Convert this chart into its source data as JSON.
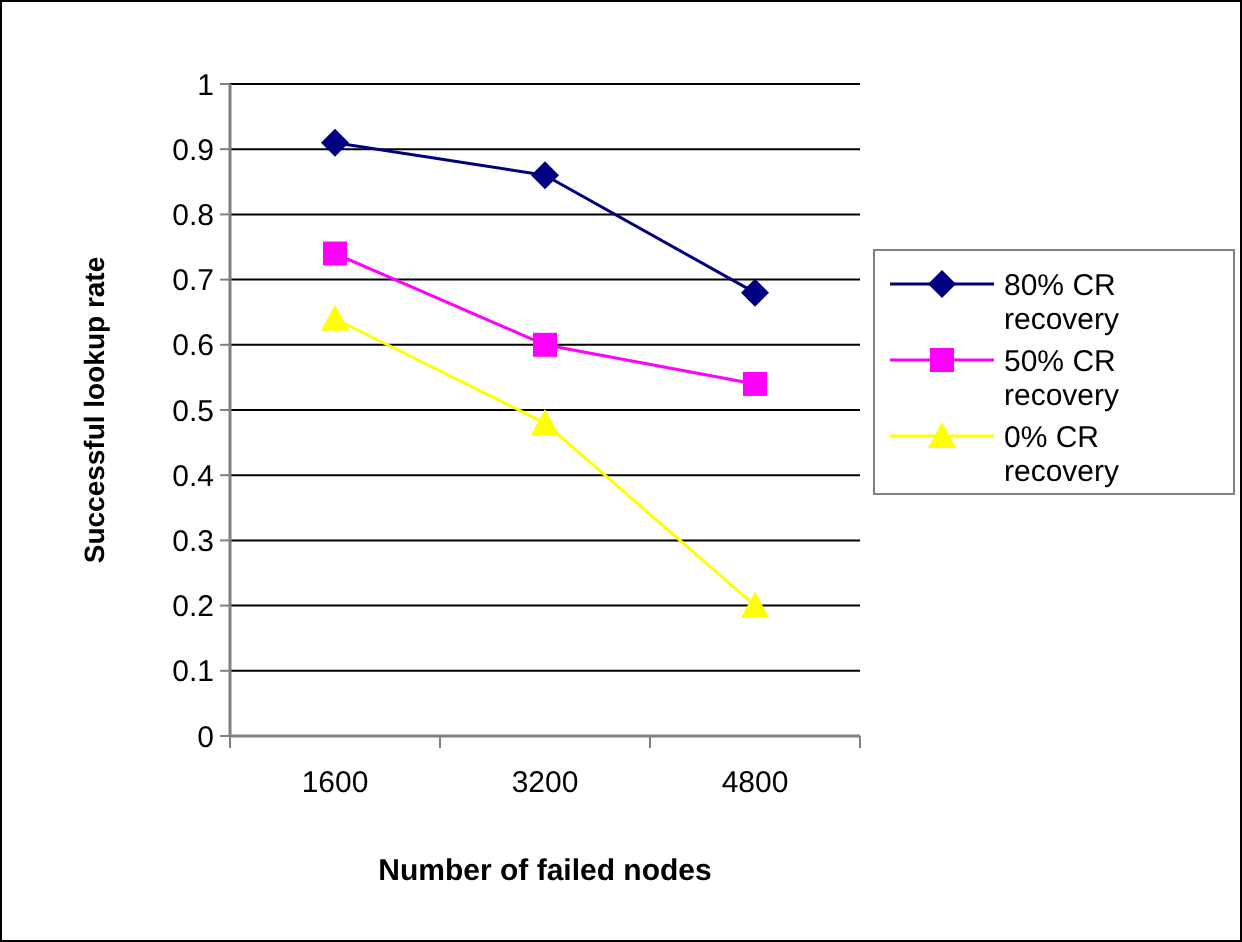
{
  "chart_data": {
    "type": "line",
    "xlabel": "Number of failed nodes",
    "ylabel": "Successful lookup rate",
    "categories": [
      "1600",
      "3200",
      "4800"
    ],
    "series": [
      {
        "name": "80% CR recovery",
        "color": "#000080",
        "marker": "diamond",
        "values": [
          0.91,
          0.86,
          0.68
        ]
      },
      {
        "name": "50% CR recovery",
        "color": "#ff00ff",
        "marker": "square",
        "values": [
          0.74,
          0.6,
          0.54
        ]
      },
      {
        "name": "0% CR recovery",
        "color": "#ffff00",
        "marker": "triangle",
        "values": [
          0.64,
          0.48,
          0.2
        ]
      }
    ],
    "ylim": [
      0,
      1
    ],
    "yticks": [
      0,
      0.1,
      0.2,
      0.3,
      0.4,
      0.5,
      0.6,
      0.7,
      0.8,
      0.9,
      1
    ],
    "grid": "y",
    "legend": "right"
  }
}
